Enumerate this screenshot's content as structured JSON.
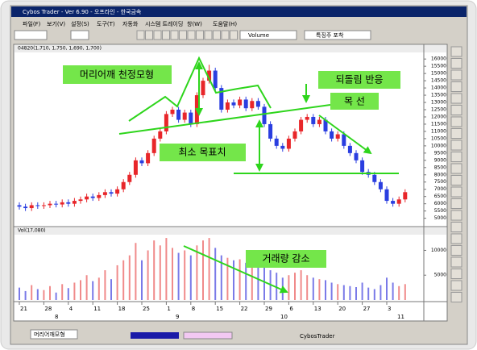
{
  "window": {
    "title": "Cybos Trader - Ver 6.90 - 오프라인 - 한국금속",
    "menu": [
      "파일(F)",
      "보기(V)",
      "설정(S)",
      "도구(T)",
      "자동화",
      "시스템 트레이딩",
      "창(W)",
      "도움말(H)"
    ],
    "toolbar": [
      "Volume",
      "특징주 포착"
    ]
  },
  "chart_data": [
    {
      "type": "candlestick",
      "header": "04820(1,710, 1,750, 1,690, 1,700)",
      "categories": [
        "21",
        null,
        null,
        null,
        "28",
        null,
        null,
        null,
        "4",
        null,
        null,
        null,
        "11",
        null,
        null,
        null,
        "18",
        null,
        null,
        null,
        "25",
        null,
        null,
        null,
        "1",
        null,
        null,
        null,
        "8",
        null,
        null,
        null,
        "15",
        null,
        null,
        null,
        "22",
        null,
        null,
        null,
        "29",
        null,
        null,
        null,
        "6",
        null,
        null,
        null,
        "13",
        null,
        null,
        null,
        "20",
        null,
        null,
        null,
        "27",
        null,
        null,
        null,
        "3",
        null,
        null,
        null
      ],
      "open": [
        5900,
        5800,
        5700,
        5900,
        5850,
        5900,
        6000,
        5950,
        6100,
        6000,
        6200,
        6300,
        6500,
        6400,
        6600,
        6800,
        6700,
        7000,
        7500,
        8000,
        9000,
        8800,
        9500,
        10500,
        11000,
        12200,
        12500,
        11800,
        12300,
        11500,
        13500,
        14500,
        15200,
        14000,
        12500,
        13000,
        12800,
        13200,
        12600,
        13100,
        12700,
        11500,
        10500,
        10000,
        9800,
        10500,
        11000,
        11800,
        12000,
        11500,
        11800,
        11000,
        10500,
        10800,
        10000,
        9500,
        9000,
        8200,
        8000,
        7500,
        7000,
        6200,
        6000,
        6300
      ],
      "high": [
        6100,
        6000,
        6100,
        6100,
        6100,
        6200,
        6200,
        6300,
        6300,
        6400,
        6500,
        6700,
        6700,
        6800,
        7000,
        7000,
        7200,
        7700,
        8200,
        9200,
        9200,
        9700,
        10700,
        11200,
        12400,
        12700,
        12700,
        12500,
        12500,
        13700,
        14700,
        15600,
        15400,
        14200,
        13200,
        13200,
        13400,
        13400,
        13300,
        13300,
        12900,
        11700,
        10700,
        10200,
        10700,
        11200,
        12000,
        12200,
        12200,
        12000,
        12000,
        11200,
        11000,
        11000,
        10200,
        9700,
        9200,
        8400,
        8200,
        7700,
        7200,
        6400,
        6500,
        7000
      ],
      "low": [
        5600,
        5500,
        5500,
        5650,
        5650,
        5700,
        5750,
        5750,
        5800,
        5800,
        6000,
        6100,
        6200,
        6200,
        6400,
        6500,
        6500,
        6800,
        7300,
        7800,
        8600,
        8600,
        9300,
        10300,
        10800,
        12000,
        11600,
        11600,
        11300,
        11300,
        13300,
        14300,
        13800,
        12300,
        12300,
        12600,
        12600,
        12400,
        12400,
        12500,
        11300,
        10300,
        9800,
        9600,
        9600,
        10300,
        10800,
        11600,
        11300,
        11300,
        10800,
        10300,
        10300,
        9800,
        9300,
        8800,
        8000,
        7800,
        7300,
        6800,
        6000,
        5800,
        5800,
        6100
      ],
      "close": [
        5800,
        5700,
        5900,
        5850,
        5900,
        6000,
        5950,
        6100,
        6000,
        6200,
        6300,
        6500,
        6400,
        6600,
        6800,
        6700,
        7000,
        7500,
        8000,
        9000,
        8800,
        9500,
        10500,
        11000,
        12200,
        12500,
        11800,
        12300,
        11500,
        13500,
        14500,
        15200,
        14000,
        12500,
        13000,
        12800,
        13200,
        12600,
        13100,
        12700,
        11500,
        10500,
        10000,
        9800,
        10500,
        11000,
        11800,
        12000,
        11500,
        11800,
        11000,
        10500,
        10800,
        10000,
        9500,
        9000,
        8200,
        8000,
        7500,
        7000,
        6200,
        6000,
        6300,
        6800
      ],
      "ylim": [
        4700,
        16400
      ],
      "yticks": [
        5000,
        5500,
        6000,
        6500,
        7000,
        7500,
        8000,
        8500,
        9000,
        9500,
        10000,
        10500,
        11000,
        11500,
        12000,
        12500,
        13000,
        13500,
        14000,
        14500,
        15000,
        15500,
        16000
      ],
      "up_color": "#e8262a",
      "down_color": "#2a3ee0"
    },
    {
      "type": "bar",
      "header": "Vol(17,080)",
      "values": [
        2500,
        1800,
        3000,
        2200,
        2000,
        2800,
        1500,
        3200,
        2400,
        3500,
        4000,
        5000,
        3800,
        4500,
        6000,
        4200,
        7000,
        8000,
        9000,
        11500,
        8000,
        10000,
        12000,
        11000,
        12500,
        10500,
        9500,
        10000,
        9000,
        11000,
        12000,
        12500,
        10500,
        9000,
        8500,
        8000,
        8200,
        7500,
        7800,
        7000,
        6500,
        6000,
        5500,
        4500,
        5000,
        5500,
        6000,
        5000,
        4500,
        4200,
        4000,
        3500,
        3200,
        3000,
        2800,
        2600,
        3500,
        2500,
        2200,
        3000,
        4500,
        3500,
        2800,
        3200
      ],
      "ylim": [
        0,
        13000
      ],
      "yticks": [
        5000,
        10000
      ],
      "up_color": "#f08a8a",
      "down_color": "#7a7ae8"
    }
  ],
  "month_labels": [
    "8",
    "9",
    "10",
    "11"
  ],
  "annotations": [
    "머리어깨 천정모형",
    "되돌림 반응",
    "목 선",
    "최소 목표치",
    "거래량 감소"
  ],
  "tabs": [
    "머리어깨모형",
    "CybosTrader"
  ]
}
